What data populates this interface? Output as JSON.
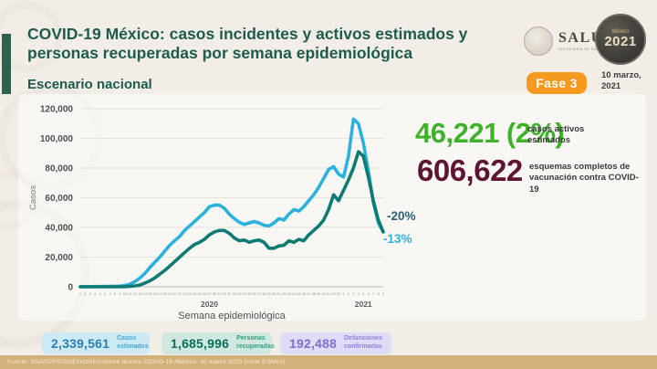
{
  "slide": {
    "title": "COVID-19 México: casos incidentes y activos estimados y personas recuperadas por semana epidemiológica",
    "subtitle": "Escenario nacional",
    "phase_label": "Fase 3",
    "phase_color": "#f49b1f",
    "date": "10 marzo, 2021",
    "logo_salud": {
      "name": "SALUD",
      "sub": "SECRETARÍA DE SALUD"
    },
    "logo_2021": {
      "top": "México",
      "year": "2021"
    },
    "footer": "Fuente: SSA/SPPS/DGE/InDRE/Informe técnico.COVID-19 /México- 10 marzo 2020 (corte 9:00hrs)"
  },
  "stats": {
    "active": {
      "value": "46,221 (2%)",
      "label": "casos activos estimados",
      "color": "#3eb229"
    },
    "vaccination": {
      "value": "606,622",
      "label": "esquemas completos de vacunación contra COVID-19",
      "color": "#5d1533"
    }
  },
  "badges": [
    {
      "value": "2,339,561",
      "label": "Casos estimados",
      "bg": "#cdeaf4",
      "value_color": "#2c7fb0",
      "label_color": "#41aad2"
    },
    {
      "value": "1,685,996",
      "label": "Personas recuperadas",
      "bg": "#cfe9e1",
      "value_color": "#0f6a5c",
      "label_color": "#2f9d85"
    },
    {
      "value": "192,488",
      "label": "Defunciones confirmadas",
      "bg": "#dedcf6",
      "value_color": "#7b70d2",
      "label_color": "#8d84da"
    }
  ],
  "chart_data": {
    "type": "line",
    "title": "",
    "xlabel": "Semana epidemiológica",
    "ylabel": "Casos",
    "ylim": [
      0,
      120000
    ],
    "yticks": [
      0,
      20000,
      40000,
      60000,
      80000,
      100000,
      120000
    ],
    "grid": "horizontal",
    "legend": "none",
    "x_week_labels": [
      1,
      2,
      3,
      4,
      5,
      6,
      7,
      8,
      9,
      10,
      11,
      12,
      13,
      14,
      15,
      16,
      17,
      18,
      19,
      20,
      21,
      22,
      23,
      24,
      25,
      26,
      27,
      28,
      29,
      30,
      31,
      32,
      33,
      34,
      35,
      36,
      37,
      38,
      39,
      40,
      41,
      42,
      43,
      44,
      45,
      46,
      47,
      48,
      49,
      50,
      51,
      52,
      53,
      1,
      2,
      3,
      4,
      5,
      6,
      7,
      8,
      9
    ],
    "year_labels": [
      {
        "label": "2020",
        "start": 0,
        "end": 52
      },
      {
        "label": "2021",
        "start": 53,
        "end": 61
      }
    ],
    "series": [
      {
        "name": "Casos estimados",
        "color": "#2bb1dc",
        "annotation": "-13%",
        "annotation_color": "#2bb3dc",
        "values": [
          100,
          100,
          150,
          200,
          200,
          250,
          300,
          350,
          500,
          900,
          1800,
          3500,
          6000,
          9000,
          13000,
          16500,
          20000,
          24000,
          28000,
          31000,
          34000,
          38000,
          41000,
          44000,
          47000,
          50000,
          54000,
          55000,
          55000,
          53000,
          49000,
          46000,
          43500,
          42000,
          43000,
          44000,
          43000,
          41500,
          41000,
          43000,
          46000,
          45000,
          49000,
          52000,
          51000,
          54000,
          58000,
          62000,
          67000,
          73000,
          79000,
          81000,
          76000,
          74000,
          88000,
          113000,
          110000,
          97000,
          78000,
          57000,
          43000,
          37000
        ]
      },
      {
        "name": "Personas recuperadas",
        "color": "#0e7b72",
        "annotation": "-20%",
        "annotation_color": "#28607c",
        "values": [
          0,
          0,
          0,
          0,
          0,
          0,
          0,
          0,
          0,
          100,
          300,
          600,
          1200,
          2500,
          4000,
          6000,
          8500,
          11000,
          14000,
          17000,
          20000,
          23000,
          26000,
          28500,
          30000,
          32000,
          35000,
          37000,
          38000,
          38000,
          36000,
          33000,
          31000,
          31500,
          30000,
          31000,
          31500,
          30000,
          26000,
          26000,
          27500,
          28000,
          31000,
          30000,
          32000,
          31000,
          35000,
          38000,
          41000,
          45000,
          52000,
          62000,
          58000,
          65000,
          72000,
          80000,
          91000,
          88000,
          74000,
          58000,
          45000,
          37000
        ]
      }
    ]
  }
}
